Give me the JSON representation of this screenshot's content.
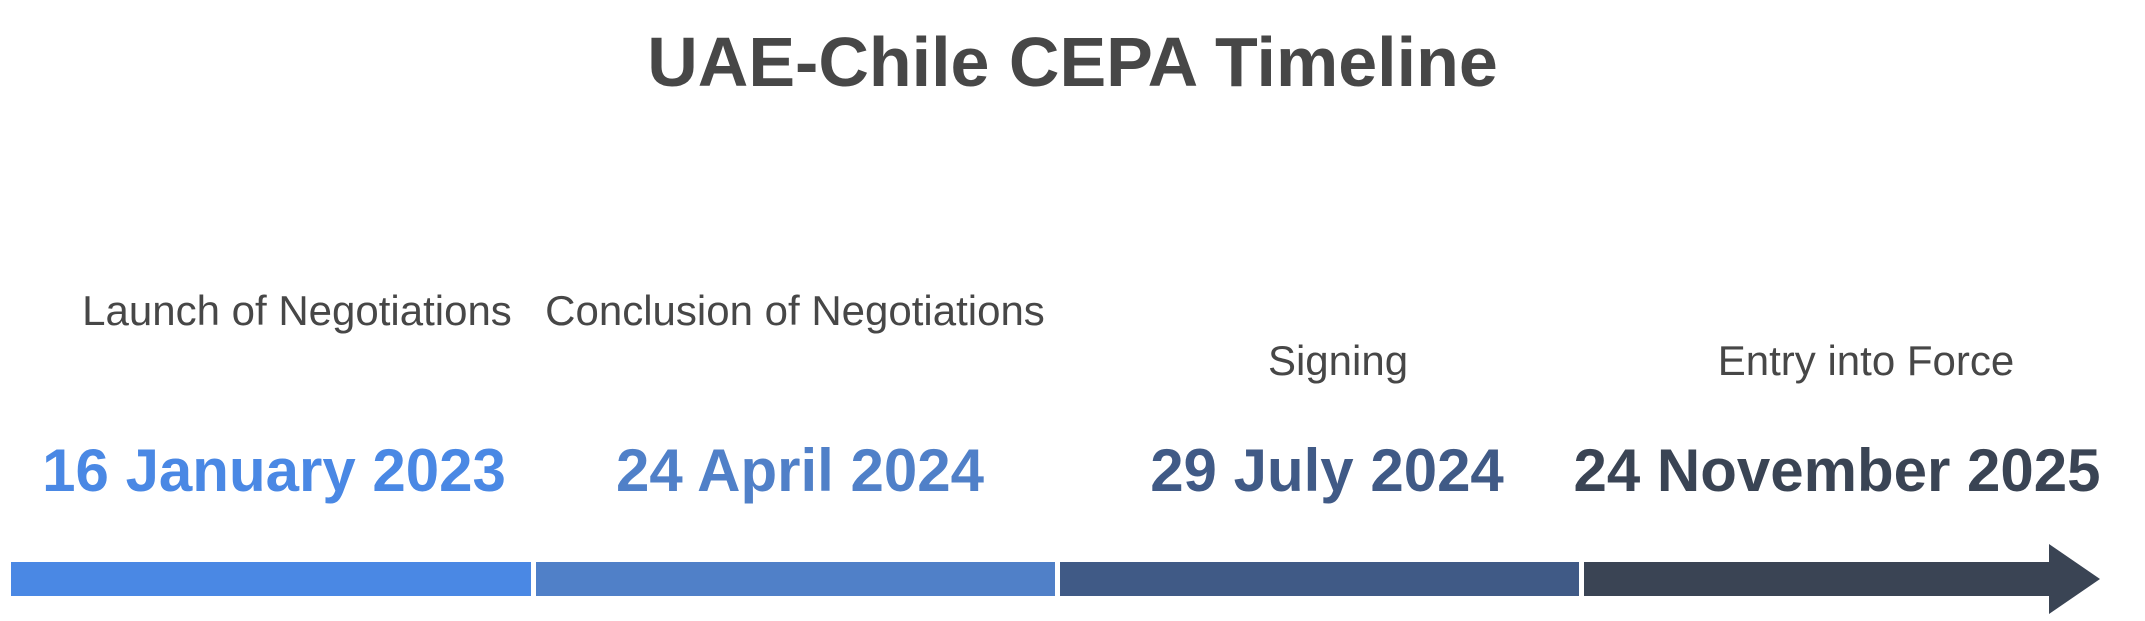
{
  "title": "UAE-Chile CEPA Timeline",
  "milestones": [
    {
      "label": "Launch of Negotiations",
      "date": "16 January 2023",
      "color": "#4a88e4"
    },
    {
      "label": "Conclusion of Negotiations",
      "date": "24 April 2024",
      "color": "#5080c8"
    },
    {
      "label": "Signing",
      "date": "29 July 2024",
      "color": "#405a86"
    },
    {
      "label": "Entry into Force",
      "date": "24 November 2025",
      "color": "#3a4454"
    }
  ]
}
